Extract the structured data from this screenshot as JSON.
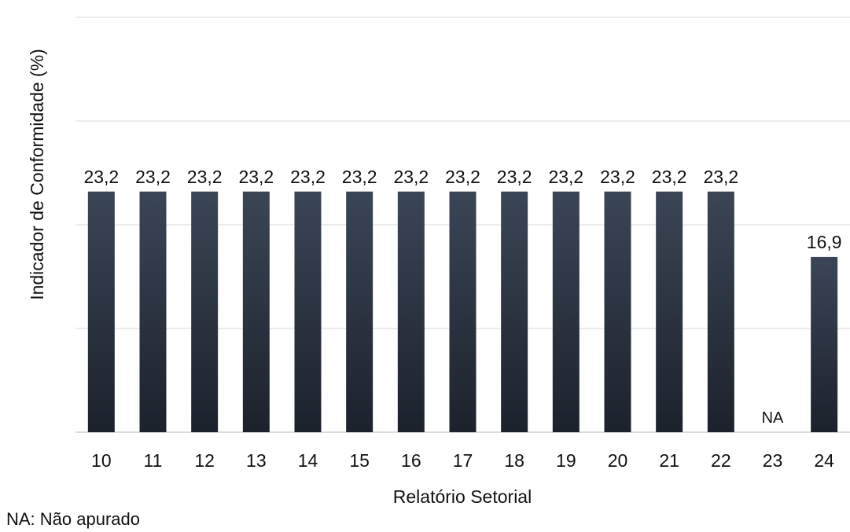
{
  "chart_data": {
    "type": "bar",
    "xlabel": "Relatório Setorial",
    "ylabel": "Indicador de Conformidade (%)",
    "categories": [
      "10",
      "11",
      "12",
      "13",
      "14",
      "15",
      "16",
      "17",
      "18",
      "19",
      "20",
      "21",
      "22",
      "23",
      "24"
    ],
    "values": [
      23.2,
      23.2,
      23.2,
      23.2,
      23.2,
      23.2,
      23.2,
      23.2,
      23.2,
      23.2,
      23.2,
      23.2,
      23.2,
      null,
      16.9
    ],
    "data_labels": [
      "23,2",
      "23,2",
      "23,2",
      "23,2",
      "23,2",
      "23,2",
      "23,2",
      "23,2",
      "23,2",
      "23,2",
      "23,2",
      "23,2",
      "23,2",
      "NA",
      "16,9"
    ],
    "ylim": [
      0,
      40
    ],
    "grid": true,
    "bar_color_top": "#3a4556",
    "bar_color_bottom": "#1c222c"
  },
  "footnote": "NA: Não apurado"
}
